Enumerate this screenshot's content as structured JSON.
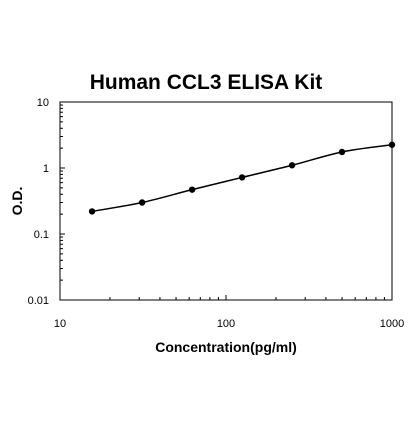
{
  "chart_data": {
    "type": "scatter",
    "title": "Human CCL3 ELISA Kit",
    "xlabel": "Concentration(pg/ml)",
    "ylabel": "O.D.",
    "x_scale": "log",
    "y_scale": "log",
    "xlim": [
      10,
      1000
    ],
    "ylim": [
      0.01,
      10
    ],
    "x_ticks": [
      10,
      100,
      1000
    ],
    "x_tick_labels": [
      "10",
      "100",
      "1000"
    ],
    "y_ticks": [
      0.01,
      0.1,
      1,
      10
    ],
    "y_tick_labels": [
      "0.01",
      "0.1",
      "1",
      "10"
    ],
    "grid": false,
    "legend": "none",
    "series": [
      {
        "x": [
          15.6,
          31.25,
          62.5,
          125,
          250,
          500,
          1000
        ],
        "y": [
          0.22,
          0.3,
          0.47,
          0.72,
          1.1,
          1.75,
          2.25
        ],
        "marker": "circle",
        "fit_curve": true,
        "color": "#000000"
      }
    ]
  }
}
